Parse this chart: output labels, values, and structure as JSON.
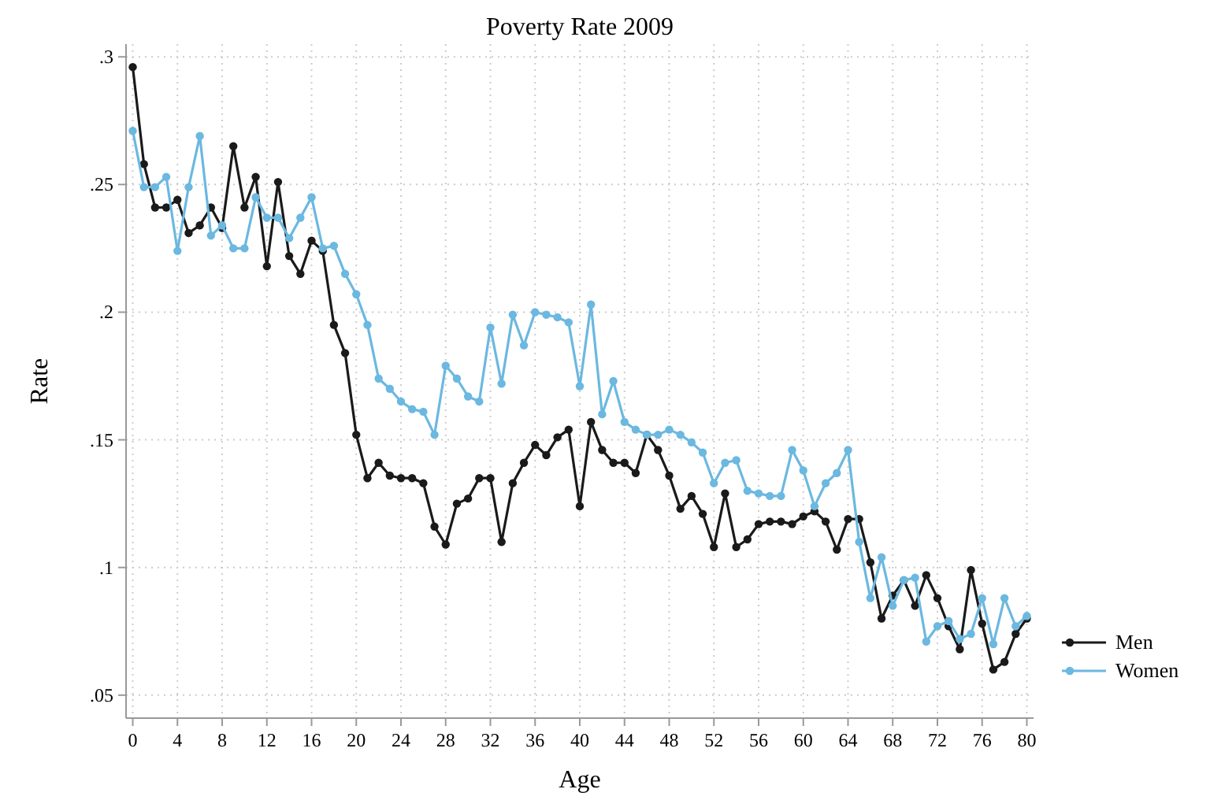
{
  "chart_data": {
    "type": "line",
    "title": "Poverty Rate 2009",
    "xlabel": "Age",
    "ylabel": "Rate",
    "x": [
      0,
      1,
      2,
      3,
      4,
      5,
      6,
      7,
      8,
      9,
      10,
      11,
      12,
      13,
      14,
      15,
      16,
      17,
      18,
      19,
      20,
      21,
      22,
      23,
      24,
      25,
      26,
      27,
      28,
      29,
      30,
      31,
      32,
      33,
      34,
      35,
      36,
      37,
      38,
      39,
      40,
      41,
      42,
      43,
      44,
      45,
      46,
      47,
      48,
      49,
      50,
      51,
      52,
      53,
      54,
      55,
      56,
      57,
      58,
      59,
      60,
      61,
      62,
      63,
      64,
      65,
      66,
      67,
      68,
      69,
      70,
      71,
      72,
      73,
      74,
      75,
      76,
      77,
      78,
      79,
      80
    ],
    "series": [
      {
        "name": "Men",
        "color": "#1a1a1a",
        "values": [
          0.296,
          0.258,
          0.241,
          0.241,
          0.244,
          0.231,
          0.234,
          0.241,
          0.233,
          0.265,
          0.241,
          0.253,
          0.218,
          0.251,
          0.222,
          0.215,
          0.228,
          0.224,
          0.195,
          0.184,
          0.152,
          0.135,
          0.141,
          0.136,
          0.135,
          0.135,
          0.133,
          0.116,
          0.109,
          0.125,
          0.127,
          0.135,
          0.135,
          0.11,
          0.133,
          0.141,
          0.148,
          0.144,
          0.151,
          0.154,
          0.124,
          0.157,
          0.146,
          0.141,
          0.141,
          0.137,
          0.152,
          0.146,
          0.136,
          0.123,
          0.128,
          0.121,
          0.108,
          0.129,
          0.108,
          0.111,
          0.117,
          0.118,
          0.118,
          0.117,
          0.12,
          0.122,
          0.118,
          0.107,
          0.119,
          0.119,
          0.102,
          0.08,
          0.089,
          0.095,
          0.085,
          0.097,
          0.088,
          0.077,
          0.068,
          0.099,
          0.078,
          0.06,
          0.063,
          0.074,
          0.08
        ]
      },
      {
        "name": "Women",
        "color": "#6bb8e0",
        "values": [
          0.271,
          0.249,
          0.249,
          0.253,
          0.224,
          0.249,
          0.269,
          0.23,
          0.234,
          0.225,
          0.225,
          0.245,
          0.237,
          0.237,
          0.229,
          0.237,
          0.245,
          0.225,
          0.226,
          0.215,
          0.207,
          0.195,
          0.174,
          0.17,
          0.165,
          0.162,
          0.161,
          0.152,
          0.179,
          0.174,
          0.167,
          0.165,
          0.194,
          0.172,
          0.199,
          0.187,
          0.2,
          0.199,
          0.198,
          0.196,
          0.171,
          0.203,
          0.16,
          0.173,
          0.157,
          0.154,
          0.152,
          0.152,
          0.154,
          0.152,
          0.149,
          0.145,
          0.133,
          0.141,
          0.142,
          0.13,
          0.129,
          0.128,
          0.128,
          0.146,
          0.138,
          0.124,
          0.133,
          0.137,
          0.146,
          0.11,
          0.088,
          0.104,
          0.085,
          0.095,
          0.096,
          0.071,
          0.077,
          0.079,
          0.072,
          0.074,
          0.088,
          0.07,
          0.088,
          0.077,
          0.081
        ]
      }
    ],
    "xlim": [
      -0.6,
      80.6
    ],
    "xticks": [
      0,
      4,
      8,
      12,
      16,
      20,
      24,
      28,
      32,
      36,
      40,
      44,
      48,
      52,
      56,
      60,
      64,
      68,
      72,
      76,
      80
    ],
    "ylim": [
      0.041,
      0.305
    ],
    "yticks": [
      {
        "value": 0.05,
        "label": ".05"
      },
      {
        "value": 0.1,
        "label": ".1"
      },
      {
        "value": 0.15,
        "label": ".15"
      },
      {
        "value": 0.2,
        "label": ".2"
      },
      {
        "value": 0.25,
        "label": ".25"
      },
      {
        "value": 0.3,
        "label": ".3"
      }
    ],
    "grid": true,
    "legend": "right",
    "marker": "circle",
    "line_style": "solid"
  }
}
